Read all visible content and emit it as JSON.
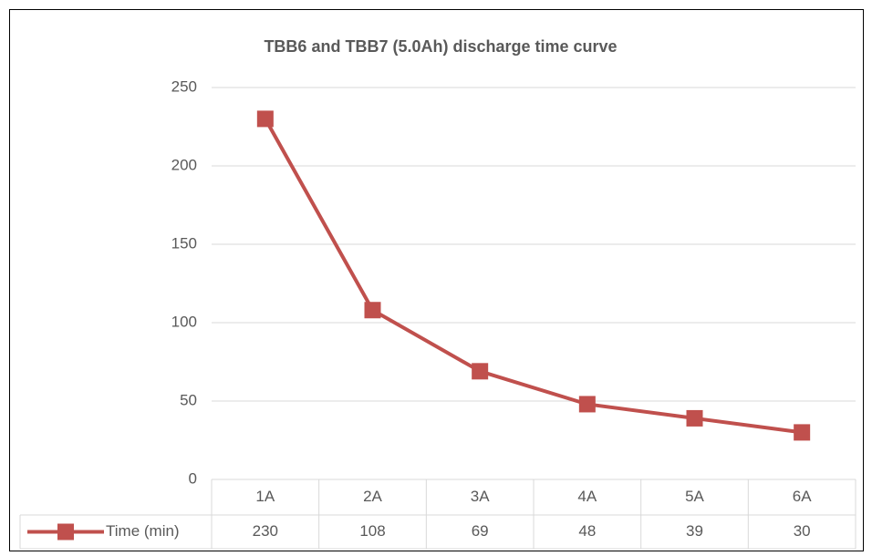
{
  "chart_data": {
    "type": "line",
    "title": "TBB6 and TBB7 (5.0Ah) discharge time curve",
    "categories": [
      "1A",
      "2A",
      "3A",
      "4A",
      "5A",
      "6A"
    ],
    "series": [
      {
        "name": "Time (min)",
        "color": "#c0504d",
        "values": [
          230,
          108,
          69,
          48,
          39,
          30
        ]
      }
    ],
    "ylim": [
      0,
      250
    ],
    "yticks": [
      0,
      50,
      100,
      150,
      200,
      250
    ],
    "grid": true,
    "data_table": true
  }
}
